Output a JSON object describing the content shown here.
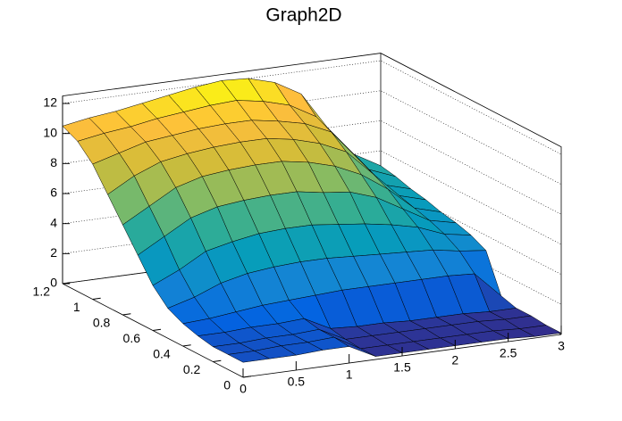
{
  "chart_data": {
    "type": "surface",
    "title": "Graph2D",
    "x": [
      0,
      0.25,
      0.5,
      0.75,
      1,
      1.25,
      1.5,
      1.75,
      2,
      2.25,
      2.5,
      2.75,
      3
    ],
    "y": [
      0,
      0.1,
      0.2,
      0.3,
      0.4,
      0.5,
      0.6,
      0.7,
      0.8,
      0.9,
      1,
      1.1,
      1.2
    ],
    "z": [
      [
        1,
        1,
        1,
        1.1,
        1.1,
        0.2,
        0.2,
        0.2,
        0.2,
        0.2,
        0.2,
        0.1,
        0.1
      ],
      [
        1,
        1,
        1.1,
        1.1,
        1.2,
        0.2,
        0.2,
        0.2,
        0.2,
        0.2,
        0.2,
        0.1,
        0.1
      ],
      [
        1,
        1,
        1.1,
        1.1,
        1.2,
        0.3,
        0.3,
        0.3,
        0.3,
        0.3,
        0.3,
        0.2,
        0.2
      ],
      [
        1.2,
        1.2,
        1.3,
        1.3,
        1.4,
        0.5,
        0.4,
        0.4,
        0.3,
        0.3,
        0.3,
        0.2,
        0.2
      ],
      [
        1.5,
        1.6,
        1.8,
        2,
        2.1,
        2.2,
        2.3,
        2.3,
        2.3,
        2.3,
        2.3,
        2.2,
        0.5
      ],
      [
        2,
        2.5,
        3.2,
        3.6,
        3.8,
        3.9,
        3.9,
        3.8,
        3.7,
        3.6,
        3.5,
        3.2,
        3
      ],
      [
        3,
        3.8,
        4.8,
        5.2,
        5.5,
        5.6,
        5.6,
        5.4,
        5.2,
        4.9,
        4.5,
        3.8,
        3.5
      ],
      [
        4.5,
        5.5,
        6.5,
        7,
        7.2,
        7.3,
        7.3,
        7,
        6.8,
        6.2,
        5.2,
        4.2,
        3.8
      ],
      [
        6,
        7,
        8,
        8.5,
        8.7,
        8.8,
        8.8,
        8.5,
        8,
        7.2,
        6,
        4.5,
        4
      ],
      [
        7.5,
        8.5,
        9.2,
        9.5,
        9.7,
        9.8,
        9.8,
        9.5,
        9,
        8.2,
        6.5,
        4.8,
        4.3
      ],
      [
        9,
        9.5,
        10,
        10.2,
        10.4,
        10.5,
        10.5,
        10.2,
        9.8,
        9,
        7,
        5,
        4.5
      ],
      [
        10,
        10.3,
        10.5,
        10.8,
        11,
        11.2,
        11.3,
        11,
        10.5,
        9.5,
        7.5,
        5.5,
        4.8
      ],
      [
        10.5,
        10.8,
        11,
        11.3,
        11.6,
        11.9,
        12.1,
        12,
        11.5,
        10.5,
        8,
        6,
        5
      ]
    ],
    "xlim": [
      0,
      3
    ],
    "ylim": [
      0,
      1.2
    ],
    "zlim": [
      0,
      12.5
    ],
    "xticks": [
      0,
      0.5,
      1,
      1.5,
      2,
      2.5,
      3
    ],
    "yticks": [
      0,
      0.2,
      0.4,
      0.6,
      0.8,
      1,
      1.2
    ],
    "zticks": [
      0,
      2,
      4,
      6,
      8,
      10,
      12
    ],
    "grid": true
  }
}
